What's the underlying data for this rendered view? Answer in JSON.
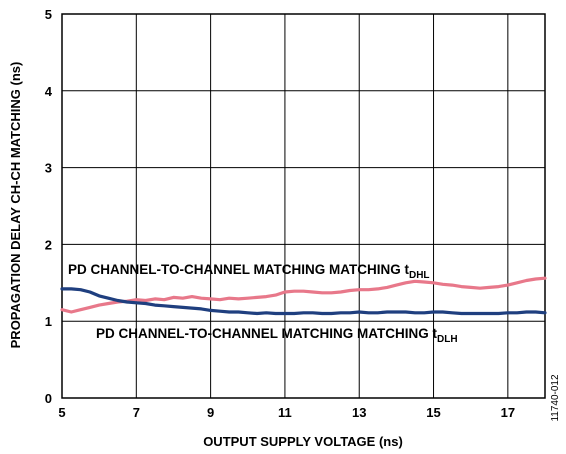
{
  "chart_data": {
    "type": "line",
    "title": "",
    "xlabel": "OUTPUT SUPPLY VOLTAGE (ns)",
    "ylabel": "PROPAGATION DELAY CH-CH MATCHING (ns)",
    "xlim": [
      5,
      18
    ],
    "ylim": [
      0,
      5
    ],
    "grid": true,
    "legend": "none",
    "x_ticks": [
      "5",
      "7",
      "9",
      "11",
      "13",
      "15",
      "17"
    ],
    "y_ticks": [
      "0",
      "1",
      "2",
      "3",
      "4",
      "5"
    ],
    "figure_id": "11740-012",
    "series": [
      {
        "label_main": "PD CHANNEL-TO-CHANNEL MATCHING MATCHING t",
        "label_sub": "DHL",
        "color": "#e8788a",
        "x": [
          5.0,
          5.25,
          5.5,
          5.75,
          6.0,
          6.25,
          6.5,
          6.75,
          7.0,
          7.25,
          7.5,
          7.75,
          8.0,
          8.25,
          8.5,
          8.75,
          9.0,
          9.25,
          9.5,
          9.75,
          10.0,
          10.25,
          10.5,
          10.75,
          11.0,
          11.25,
          11.5,
          11.75,
          12.0,
          12.25,
          12.5,
          12.75,
          13.0,
          13.25,
          13.5,
          13.75,
          14.0,
          14.25,
          14.5,
          14.75,
          15.0,
          15.25,
          15.5,
          15.75,
          16.0,
          16.25,
          16.5,
          16.75,
          17.0,
          17.25,
          17.5,
          17.75,
          18.0
        ],
        "y": [
          1.15,
          1.12,
          1.15,
          1.18,
          1.21,
          1.23,
          1.25,
          1.26,
          1.28,
          1.27,
          1.29,
          1.28,
          1.31,
          1.3,
          1.32,
          1.3,
          1.29,
          1.28,
          1.3,
          1.29,
          1.3,
          1.31,
          1.32,
          1.34,
          1.38,
          1.39,
          1.39,
          1.38,
          1.37,
          1.37,
          1.38,
          1.4,
          1.41,
          1.41,
          1.42,
          1.44,
          1.47,
          1.5,
          1.52,
          1.51,
          1.5,
          1.48,
          1.47,
          1.45,
          1.44,
          1.43,
          1.44,
          1.45,
          1.47,
          1.5,
          1.53,
          1.55,
          1.56
        ]
      },
      {
        "label_main": "PD CHANNEL-TO-CHANNEL MATCHING MATCHING t",
        "label_sub": "DLH",
        "color": "#1f3f7f",
        "x": [
          5.0,
          5.25,
          5.5,
          5.75,
          6.0,
          6.25,
          6.5,
          6.75,
          7.0,
          7.25,
          7.5,
          7.75,
          8.0,
          8.25,
          8.5,
          8.75,
          9.0,
          9.25,
          9.5,
          9.75,
          10.0,
          10.25,
          10.5,
          10.75,
          11.0,
          11.25,
          11.5,
          11.75,
          12.0,
          12.25,
          12.5,
          12.75,
          13.0,
          13.25,
          13.5,
          13.75,
          14.0,
          14.25,
          14.5,
          14.75,
          15.0,
          15.25,
          15.5,
          15.75,
          16.0,
          16.25,
          16.5,
          16.75,
          17.0,
          17.25,
          17.5,
          17.75,
          18.0
        ],
        "y": [
          1.42,
          1.42,
          1.41,
          1.38,
          1.33,
          1.3,
          1.27,
          1.25,
          1.24,
          1.23,
          1.21,
          1.2,
          1.19,
          1.18,
          1.17,
          1.16,
          1.14,
          1.13,
          1.12,
          1.12,
          1.11,
          1.1,
          1.11,
          1.1,
          1.1,
          1.1,
          1.11,
          1.11,
          1.1,
          1.1,
          1.11,
          1.11,
          1.12,
          1.11,
          1.11,
          1.12,
          1.12,
          1.12,
          1.11,
          1.11,
          1.12,
          1.12,
          1.11,
          1.1,
          1.1,
          1.1,
          1.1,
          1.1,
          1.11,
          1.11,
          1.12,
          1.12,
          1.11
        ]
      }
    ]
  }
}
